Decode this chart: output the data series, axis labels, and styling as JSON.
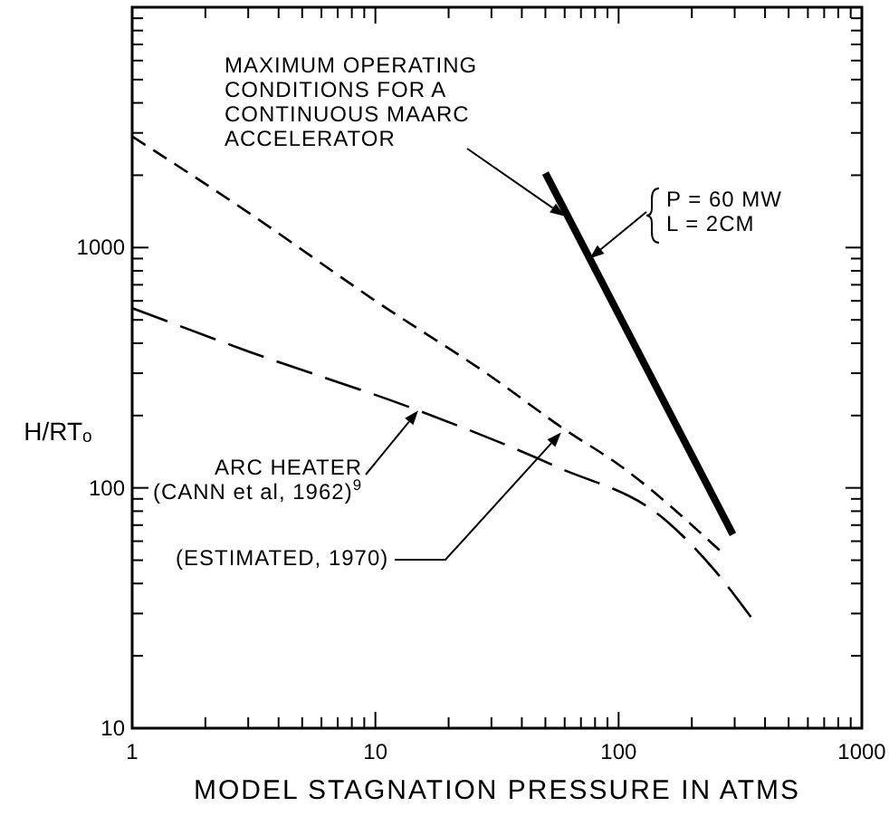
{
  "chart_data": {
    "type": "line",
    "xlabel": "MODEL STAGNATION PRESSURE IN ATMS",
    "ylabel": "H/RTₒ",
    "log": "xy",
    "grid": false,
    "xlim": [
      1,
      1000
    ],
    "ylim": [
      10,
      10000
    ],
    "xticks": [
      1,
      {
        "value": 2,
        "label": null
      },
      {
        "value": 3,
        "label": null
      },
      {
        "value": 4,
        "label": null
      },
      {
        "value": 5,
        "label": null
      },
      {
        "value": 6,
        "label": null
      },
      {
        "value": 7,
        "label": null
      },
      {
        "value": 8,
        "label": null
      },
      {
        "value": 9,
        "label": null
      },
      10,
      {
        "value": 20,
        "label": null
      },
      {
        "value": 30,
        "label": null
      },
      {
        "value": 40,
        "label": null
      },
      {
        "value": 50,
        "label": null
      },
      {
        "value": 60,
        "label": null
      },
      {
        "value": 70,
        "label": null
      },
      {
        "value": 80,
        "label": null
      },
      {
        "value": 90,
        "label": null
      },
      100,
      {
        "value": 200,
        "label": null
      },
      {
        "value": 300,
        "label": null
      },
      {
        "value": 400,
        "label": null
      },
      {
        "value": 500,
        "label": null
      },
      {
        "value": 600,
        "label": null
      },
      {
        "value": 700,
        "label": null
      },
      {
        "value": 800,
        "label": null
      },
      {
        "value": 900,
        "label": null
      },
      1000
    ],
    "yticks": [
      10,
      {
        "value": 20,
        "label": null
      },
      {
        "value": 30,
        "label": null
      },
      {
        "value": 40,
        "label": null
      },
      {
        "value": 50,
        "label": null
      },
      {
        "value": 60,
        "label": null
      },
      {
        "value": 70,
        "label": null
      },
      {
        "value": 80,
        "label": null
      },
      {
        "value": 90,
        "label": null
      },
      100,
      {
        "value": 200,
        "label": null
      },
      {
        "value": 300,
        "label": null
      },
      {
        "value": 400,
        "label": null
      },
      {
        "value": 500,
        "label": null
      },
      {
        "value": 600,
        "label": null
      },
      {
        "value": 700,
        "label": null
      },
      {
        "value": 800,
        "label": null
      },
      {
        "value": 900,
        "label": null
      },
      1000,
      {
        "value": 2000,
        "label": null
      },
      {
        "value": 3000,
        "label": null
      },
      {
        "value": 4000,
        "label": null
      },
      {
        "value": 5000,
        "label": null
      },
      {
        "value": 6000,
        "label": null
      },
      {
        "value": 7000,
        "label": null
      },
      {
        "value": 8000,
        "label": null
      },
      {
        "value": 9000,
        "label": null
      },
      {
        "value": 10000,
        "label": null
      }
    ],
    "series": [
      {
        "color": "#000000",
        "line_style": "solid",
        "x": [
          50,
          295
        ],
        "values": [
          2040,
          64
        ]
      },
      {
        "color": "#000000",
        "line_style": "dashed",
        "x": [
          1,
          3,
          10,
          30,
          60,
          100,
          260
        ],
        "values": [
          2900,
          1400,
          600,
          290,
          175,
          125,
          55
        ]
      },
      {
        "color": "#000000",
        "line_style": "dashed",
        "x": [
          1,
          3,
          15,
          55,
          157,
          250,
          350
        ],
        "values": [
          560,
          370,
          210,
          123,
          73,
          45,
          29
        ]
      }
    ],
    "annotations": [
      {
        "text": "MAXIMUM OPERATING\nCONDITIONS FOR A\nCONTINUOUS MAARC\nACCELERATOR",
        "x": 60,
        "y": 1350
      },
      {
        "text": "P = 60 MW\nL = 2CM",
        "x": 76,
        "y": 900
      },
      {
        "text": "ARC HEATER\n(CANN et al, 1962)$^{9}$",
        "x": 15,
        "y": 210
      },
      {
        "text": "(ESTIMATED, 1970)",
        "x": 58,
        "y": 170
      }
    ]
  }
}
